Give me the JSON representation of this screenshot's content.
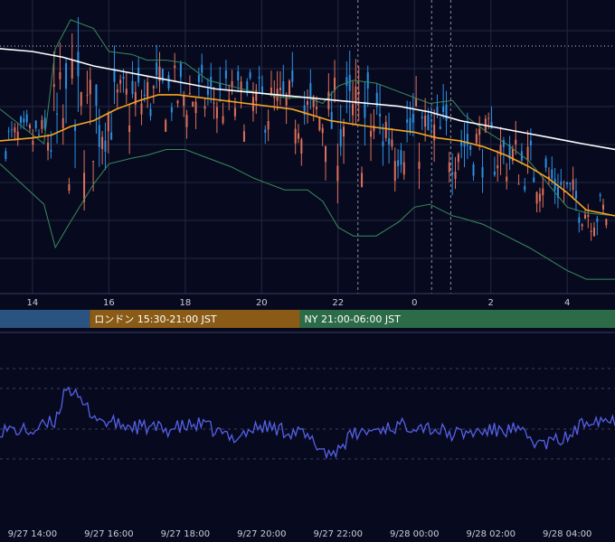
{
  "chart_data": [
    {
      "type": "candlestick",
      "panel": "price",
      "indicators": [
        "moving-average-short",
        "moving-average-long",
        "bollinger-bands"
      ],
      "x_tick_labels": [
        "14",
        "16",
        "18",
        "20",
        "22",
        "0",
        "2",
        "4"
      ],
      "x_tick_hours": [
        0,
        2,
        4,
        6,
        8,
        10,
        12,
        14
      ],
      "x_range_hours": [
        -0.85,
        15.25
      ],
      "grid": true,
      "colors": {
        "up": "#2b8fe0",
        "down": "#e0705a",
        "ma_short": "#f5a623",
        "ma_long": "#ffffff",
        "bollinger": "#3a8a5a",
        "grid": "#232842",
        "background": "#070a1f"
      },
      "bollinger_path": [
        [
          -0.85,
          0.64
        ],
        [
          0.3,
          0.52
        ],
        [
          0.6,
          0.85
        ],
        [
          1.0,
          0.95
        ],
        [
          1.6,
          0.92
        ],
        [
          2.0,
          0.84
        ],
        [
          2.6,
          0.83
        ],
        [
          3.0,
          0.81
        ],
        [
          3.5,
          0.81
        ],
        [
          4.0,
          0.8
        ],
        [
          4.6,
          0.74
        ],
        [
          5.2,
          0.72
        ],
        [
          5.8,
          0.7
        ],
        [
          6.2,
          0.69
        ],
        [
          6.6,
          0.68
        ],
        [
          7.2,
          0.68
        ],
        [
          7.6,
          0.66
        ],
        [
          8.0,
          0.72
        ],
        [
          8.4,
          0.74
        ],
        [
          9.0,
          0.73
        ],
        [
          9.6,
          0.7
        ],
        [
          10.0,
          0.68
        ],
        [
          10.4,
          0.66
        ],
        [
          11.0,
          0.67
        ],
        [
          11.3,
          0.62
        ],
        [
          11.8,
          0.57
        ],
        [
          12.4,
          0.52
        ],
        [
          13.0,
          0.46
        ],
        [
          13.5,
          0.38
        ],
        [
          14.0,
          0.3
        ],
        [
          14.5,
          0.28
        ],
        [
          15.25,
          0.27
        ]
      ],
      "bollinger_lower_path": [
        [
          -0.85,
          0.45
        ],
        [
          0.3,
          0.31
        ],
        [
          0.6,
          0.16
        ],
        [
          1.0,
          0.25
        ],
        [
          1.6,
          0.38
        ],
        [
          2.0,
          0.45
        ],
        [
          2.6,
          0.47
        ],
        [
          3.0,
          0.48
        ],
        [
          3.5,
          0.5
        ],
        [
          4.0,
          0.5
        ],
        [
          4.6,
          0.47
        ],
        [
          5.2,
          0.44
        ],
        [
          5.8,
          0.4
        ],
        [
          6.2,
          0.38
        ],
        [
          6.6,
          0.36
        ],
        [
          7.2,
          0.36
        ],
        [
          7.6,
          0.32
        ],
        [
          8.0,
          0.23
        ],
        [
          8.4,
          0.2
        ],
        [
          9.0,
          0.2
        ],
        [
          9.6,
          0.25
        ],
        [
          10.0,
          0.3
        ],
        [
          10.4,
          0.31
        ],
        [
          11.0,
          0.27
        ],
        [
          11.3,
          0.26
        ],
        [
          11.8,
          0.24
        ],
        [
          12.4,
          0.2
        ],
        [
          13.0,
          0.16
        ],
        [
          13.5,
          0.12
        ],
        [
          14.0,
          0.08
        ],
        [
          14.5,
          0.05
        ],
        [
          15.25,
          0.05
        ]
      ],
      "ma_short_path": [
        [
          -0.85,
          0.53
        ],
        [
          0.0,
          0.54
        ],
        [
          0.5,
          0.55
        ],
        [
          1.0,
          0.58
        ],
        [
          1.6,
          0.6
        ],
        [
          2.2,
          0.64
        ],
        [
          2.8,
          0.67
        ],
        [
          3.3,
          0.69
        ],
        [
          3.8,
          0.69
        ],
        [
          4.4,
          0.68
        ],
        [
          5.0,
          0.67
        ],
        [
          5.6,
          0.66
        ],
        [
          6.2,
          0.65
        ],
        [
          6.8,
          0.64
        ],
        [
          7.3,
          0.62
        ],
        [
          7.8,
          0.6
        ],
        [
          8.3,
          0.59
        ],
        [
          8.8,
          0.58
        ],
        [
          9.4,
          0.57
        ],
        [
          10.0,
          0.56
        ],
        [
          10.6,
          0.54
        ],
        [
          11.2,
          0.53
        ],
        [
          11.8,
          0.51
        ],
        [
          12.4,
          0.48
        ],
        [
          13.0,
          0.44
        ],
        [
          13.5,
          0.4
        ],
        [
          14.0,
          0.35
        ],
        [
          14.5,
          0.29
        ],
        [
          15.25,
          0.27
        ]
      ],
      "ma_long_path": [
        [
          -0.85,
          0.85
        ],
        [
          0.0,
          0.84
        ],
        [
          0.8,
          0.82
        ],
        [
          1.6,
          0.79
        ],
        [
          2.4,
          0.77
        ],
        [
          3.2,
          0.75
        ],
        [
          4.0,
          0.73
        ],
        [
          4.8,
          0.71
        ],
        [
          5.6,
          0.7
        ],
        [
          6.4,
          0.69
        ],
        [
          7.2,
          0.68
        ],
        [
          8.0,
          0.67
        ],
        [
          8.8,
          0.66
        ],
        [
          9.6,
          0.65
        ],
        [
          10.4,
          0.63
        ],
        [
          11.2,
          0.6
        ],
        [
          12.0,
          0.58
        ],
        [
          12.8,
          0.56
        ],
        [
          13.6,
          0.54
        ],
        [
          14.4,
          0.52
        ],
        [
          15.25,
          0.5
        ]
      ],
      "value_scale": "relative (no price axis printed)"
    },
    {
      "type": "line",
      "panel": "oscillator",
      "x_tick_labels": [
        "9/27 14:00",
        "9/27 16:00",
        "9/27 18:00",
        "9/27 20:00",
        "9/27 22:00",
        "9/28 00:00",
        "9/28 02:00",
        "9/28 04:00"
      ],
      "x_tick_hours": [
        0,
        2,
        4,
        6,
        8,
        10,
        12,
        14
      ],
      "x_range_hours": [
        -0.85,
        15.25
      ],
      "series_color": "#5560e8",
      "grid": true,
      "value_scale": "relative (no value axis printed)"
    }
  ],
  "sessions": [
    {
      "label": "",
      "color": "#2b5382",
      "start_hour": -0.85,
      "end_hour": 1.5
    },
    {
      "label": "ロンドン 15:30-21:00 JST",
      "color": "#8a5b16",
      "start_hour": 1.5,
      "end_hour": 7.0
    },
    {
      "label": "NY 21:00-06:00 JST",
      "color": "#2c6b47",
      "start_hour": 7.0,
      "end_hour": 15.25
    }
  ]
}
